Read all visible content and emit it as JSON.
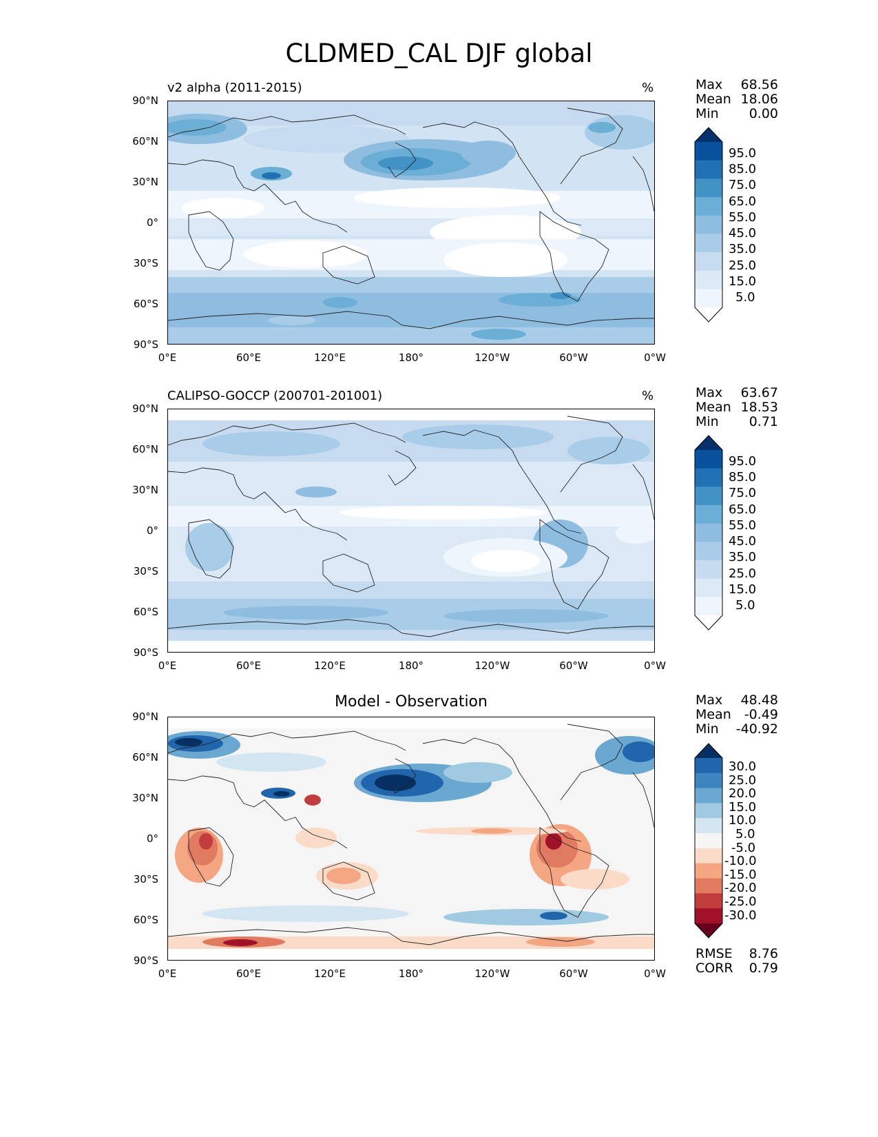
{
  "title": "CLDMED_CAL DJF global",
  "lat_ticks": [
    "90°N",
    "60°N",
    "30°N",
    "0°",
    "30°S",
    "60°S",
    "90°S"
  ],
  "lon_ticks": [
    "0°E",
    "60°E",
    "120°E",
    "180°",
    "120°W",
    "60°W",
    "0°W"
  ],
  "panels": [
    {
      "subtitle": "v2 alpha (2011-2015)",
      "units": "%",
      "stats": {
        "max_label": "Max",
        "max": "68.56",
        "mean_label": "Mean",
        "mean": "18.06",
        "min_label": "Min",
        "min": "0.00"
      },
      "colorbar": [
        "95.0",
        "85.0",
        "75.0",
        "65.0",
        "55.0",
        "45.0",
        "35.0",
        "25.0",
        "15.0",
        "5.0"
      ],
      "colorbar_colors": [
        "#08306b",
        "#08519c",
        "#2171b5",
        "#4292c6",
        "#6baed6",
        "#8fbde0",
        "#a9cde8",
        "#c6dbef",
        "#dbe9f6",
        "#eef5fc",
        "#ffffff"
      ]
    },
    {
      "subtitle": "CALIPSO-GOCCP (200701-201001)",
      "units": "%",
      "stats": {
        "max_label": "Max",
        "max": "63.67",
        "mean_label": "Mean",
        "mean": "18.53",
        "min_label": "Min",
        "min": "0.71"
      },
      "colorbar": [
        "95.0",
        "85.0",
        "75.0",
        "65.0",
        "55.0",
        "45.0",
        "35.0",
        "25.0",
        "15.0",
        "5.0"
      ],
      "colorbar_colors": [
        "#08306b",
        "#08519c",
        "#2171b5",
        "#4292c6",
        "#6baed6",
        "#8fbde0",
        "#a9cde8",
        "#c6dbef",
        "#dbe9f6",
        "#eef5fc",
        "#ffffff"
      ]
    },
    {
      "title": "Model - Observation",
      "stats": {
        "max_label": "Max",
        "max": "48.48",
        "mean_label": "Mean",
        "mean": "-0.49",
        "min_label": "Min",
        "min": "-40.92"
      },
      "colorbar": [
        "30.0",
        "25.0",
        "20.0",
        "15.0",
        "10.0",
        "5.0",
        "-5.0",
        "-10.0",
        "-15.0",
        "-20.0",
        "-25.0",
        "-30.0"
      ],
      "colorbar_colors": [
        "#053061",
        "#2166ac",
        "#3d85bf",
        "#6aa8d1",
        "#9fcae1",
        "#d2e5f0",
        "#f5f5f5",
        "#fadbc8",
        "#f4a582",
        "#e07b62",
        "#c23d3d",
        "#a11228",
        "#67001f"
      ],
      "extra_stats": {
        "rmse_label": "RMSE",
        "rmse": "8.76",
        "corr_label": "CORR",
        "corr": "0.79"
      }
    }
  ]
}
